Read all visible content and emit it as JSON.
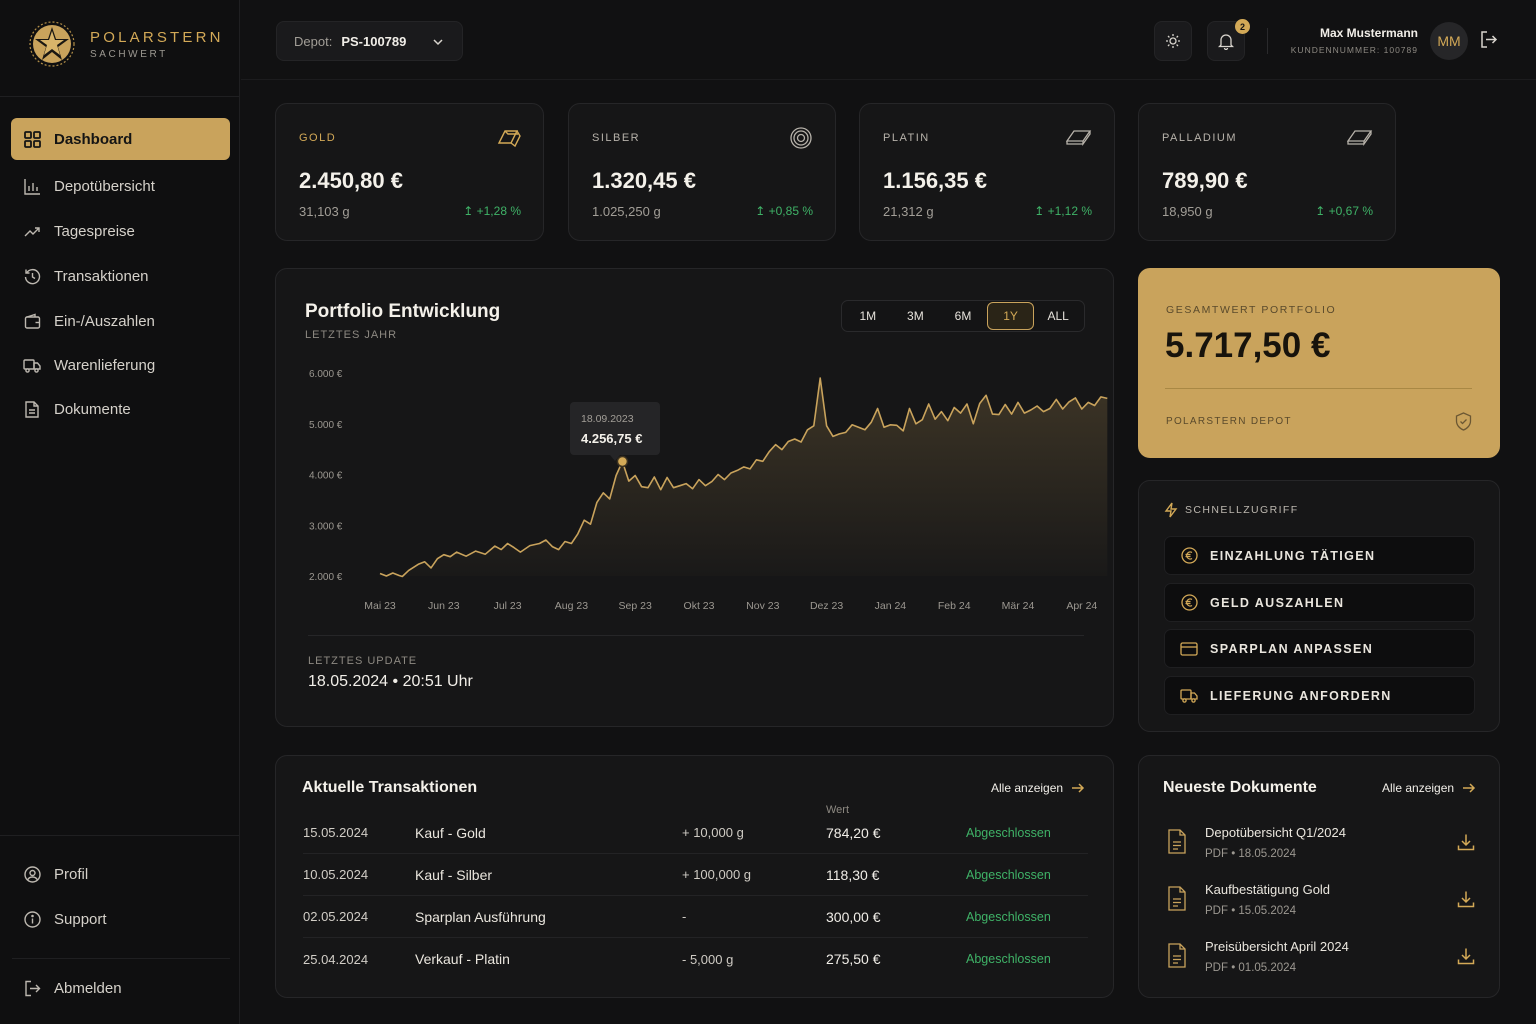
{
  "brand": {
    "name": "POLARSTERN",
    "sub": "SACHWERT"
  },
  "sidebar": {
    "items": [
      {
        "label": "Dashboard",
        "icon": "grid-icon"
      },
      {
        "label": "Depotübersicht",
        "icon": "bar-chart-icon"
      },
      {
        "label": "Tagespreise",
        "icon": "trend-up-icon"
      },
      {
        "label": "Transaktionen",
        "icon": "history-icon"
      },
      {
        "label": "Ein-/Auszahlen",
        "icon": "wallet-icon"
      },
      {
        "label": "Warenlieferung",
        "icon": "truck-icon"
      },
      {
        "label": "Dokumente",
        "icon": "document-icon"
      }
    ],
    "bottom": [
      {
        "label": "Profil",
        "icon": "user-circle-icon"
      },
      {
        "label": "Support",
        "icon": "info-icon"
      }
    ],
    "logout": "Abmelden"
  },
  "topbar": {
    "depot_label": "Depot:",
    "depot_value": "PS-100789",
    "notifications": "2",
    "user_name": "Max Mustermann",
    "user_id": "KUNDENNUMMER: 100789",
    "initials": "MM"
  },
  "metals": [
    {
      "name": "GOLD",
      "price": "2.450,80 €",
      "weight": "31,103 g",
      "change": "+1,28 %"
    },
    {
      "name": "SILBER",
      "price": "1.320,45 €",
      "weight": "1.025,250 g",
      "change": "+0,85 %"
    },
    {
      "name": "PLATIN",
      "price": "1.156,35 €",
      "weight": "21,312 g",
      "change": "+1,12 %"
    },
    {
      "name": "PALLADIUM",
      "price": "789,90 €",
      "weight": "18,950 g",
      "change": "+0,67 %"
    }
  ],
  "portfolio": {
    "title": "Portfolio Entwicklung",
    "subtitle": "LETZTES JAHR",
    "ranges": [
      "1M",
      "3M",
      "6M",
      "1Y",
      "ALL"
    ],
    "active_range": "1Y",
    "tooltip_date": "18.09.2023",
    "tooltip_value": "4.256,75 €",
    "update_label": "LETZTES UPDATE",
    "update_value": "18.05.2024 • 20:51 Uhr"
  },
  "chart_data": {
    "type": "area",
    "x_tick_labels": [
      "Mai 23",
      "Jun 23",
      "Jul 23",
      "Aug 23",
      "Sep 23",
      "Okt 23",
      "Nov 23",
      "Dez 23",
      "Jan 24",
      "Feb 24",
      "Mär 24",
      "Apr 24"
    ],
    "y_tick_labels": [
      "6.000 €",
      "5.000 €",
      "4.000 €",
      "3.000 €",
      "2.000 €"
    ],
    "ylim": [
      2000,
      6000
    ],
    "x_positions": [
      0,
      0.1,
      0.2,
      0.3,
      0.35,
      0.45,
      0.6,
      0.7,
      0.8,
      0.9,
      1.0,
      1.1,
      1.2,
      1.35,
      1.5,
      1.65,
      1.8,
      1.9,
      2.0,
      2.1,
      2.2,
      2.35,
      2.5,
      2.6,
      2.7,
      2.8,
      2.9,
      3.0,
      3.1,
      3.2,
      3.3,
      3.4,
      3.5,
      3.6,
      3.7,
      3.8,
      3.9,
      4.0,
      4.1,
      4.2,
      4.3,
      4.4,
      4.5,
      4.6,
      4.7,
      4.8,
      4.9,
      5.0,
      5.1,
      5.2,
      5.3,
      5.4,
      5.5,
      5.6,
      5.7,
      5.8,
      5.9,
      6.0,
      6.1,
      6.2,
      6.3,
      6.4,
      6.5,
      6.6,
      6.7,
      6.8,
      6.9,
      7.0,
      7.1,
      7.2,
      7.3,
      7.4,
      7.5,
      7.6,
      7.7,
      7.8,
      7.9,
      8.0,
      8.1,
      8.2,
      8.3,
      8.4,
      8.5,
      8.6,
      8.7,
      8.8,
      8.9,
      9.0,
      9.1,
      9.2,
      9.3,
      9.4,
      9.5,
      9.6,
      9.7,
      9.8,
      9.9,
      10.0,
      10.1,
      10.2,
      10.3,
      10.4,
      10.5,
      10.6,
      10.7,
      10.8,
      10.9,
      11.0,
      11.1,
      11.2,
      11.3,
      11.4
    ],
    "values": [
      2050,
      2000,
      2060,
      2010,
      1990,
      2110,
      2230,
      2280,
      2160,
      2340,
      2420,
      2380,
      2470,
      2390,
      2490,
      2430,
      2590,
      2520,
      2640,
      2560,
      2470,
      2600,
      2640,
      2710,
      2580,
      2520,
      2680,
      2640,
      2830,
      3100,
      3020,
      3450,
      3640,
      3520,
      3980,
      4256,
      3870,
      3980,
      3760,
      3740,
      3950,
      3700,
      3940,
      3740,
      3780,
      3820,
      3720,
      3900,
      3780,
      3860,
      4000,
      3900,
      4030,
      4080,
      4150,
      4110,
      4290,
      4260,
      4450,
      4590,
      4490,
      4650,
      4700,
      4640,
      4880,
      4960,
      5900,
      4960,
      4750,
      4800,
      4830,
      4980,
      4930,
      4880,
      5030,
      5300,
      4930,
      4980,
      4970,
      4860,
      5300,
      5000,
      5080,
      5390,
      5090,
      5240,
      5060,
      5320,
      5210,
      5390,
      5000,
      5400,
      5560,
      5190,
      5180,
      5380,
      5190,
      5420,
      5210,
      5270,
      5350,
      5240,
      5300,
      5480,
      5290,
      5430,
      5510,
      5290,
      5420,
      5360,
      5530,
      5500
    ]
  },
  "total": {
    "label": "GESAMTWERT PORTFOLIO",
    "value": "5.717,50 €",
    "depot": "POLARSTERN DEPOT"
  },
  "quick": {
    "title": "SCHNELLZUGRIFF",
    "buttons": [
      "EINZAHLUNG TÄTIGEN",
      "GELD AUSZAHLEN",
      "SPARPLAN ANPASSEN",
      "LIEFERUNG ANFORDERN"
    ]
  },
  "transactions": {
    "title": "Aktuelle Transaktionen",
    "show_all": "Alle anzeigen",
    "value_header": "Wert",
    "rows": [
      {
        "date": "15.05.2024",
        "type": "Kauf - Gold",
        "amount": "+ 10,000 g",
        "value": "784,20 €",
        "status": "Abgeschlossen"
      },
      {
        "date": "10.05.2024",
        "type": "Kauf - Silber",
        "amount": "+ 100,000 g",
        "value": "118,30 €",
        "status": "Abgeschlossen"
      },
      {
        "date": "02.05.2024",
        "type": "Sparplan Ausführung",
        "amount": "-",
        "value": "300,00 €",
        "status": "Abgeschlossen"
      },
      {
        "date": "25.04.2024",
        "type": "Verkauf - Platin",
        "amount": "- 5,000 g",
        "value": "275,50 €",
        "status": "Abgeschlossen"
      }
    ]
  },
  "documents": {
    "title": "Neueste Dokumente",
    "show_all": "Alle anzeigen",
    "items": [
      {
        "name": "Depotübersicht Q1/2024",
        "meta": "PDF • 18.05.2024"
      },
      {
        "name": "Kaufbestätigung Gold",
        "meta": "PDF • 15.05.2024"
      },
      {
        "name": "Preisübersicht April 2024",
        "meta": "PDF • 01.05.2024"
      }
    ]
  },
  "colors": {
    "accent": "#c9a35c",
    "positive": "#3fb267",
    "background": "#111112",
    "card": "#161617"
  }
}
